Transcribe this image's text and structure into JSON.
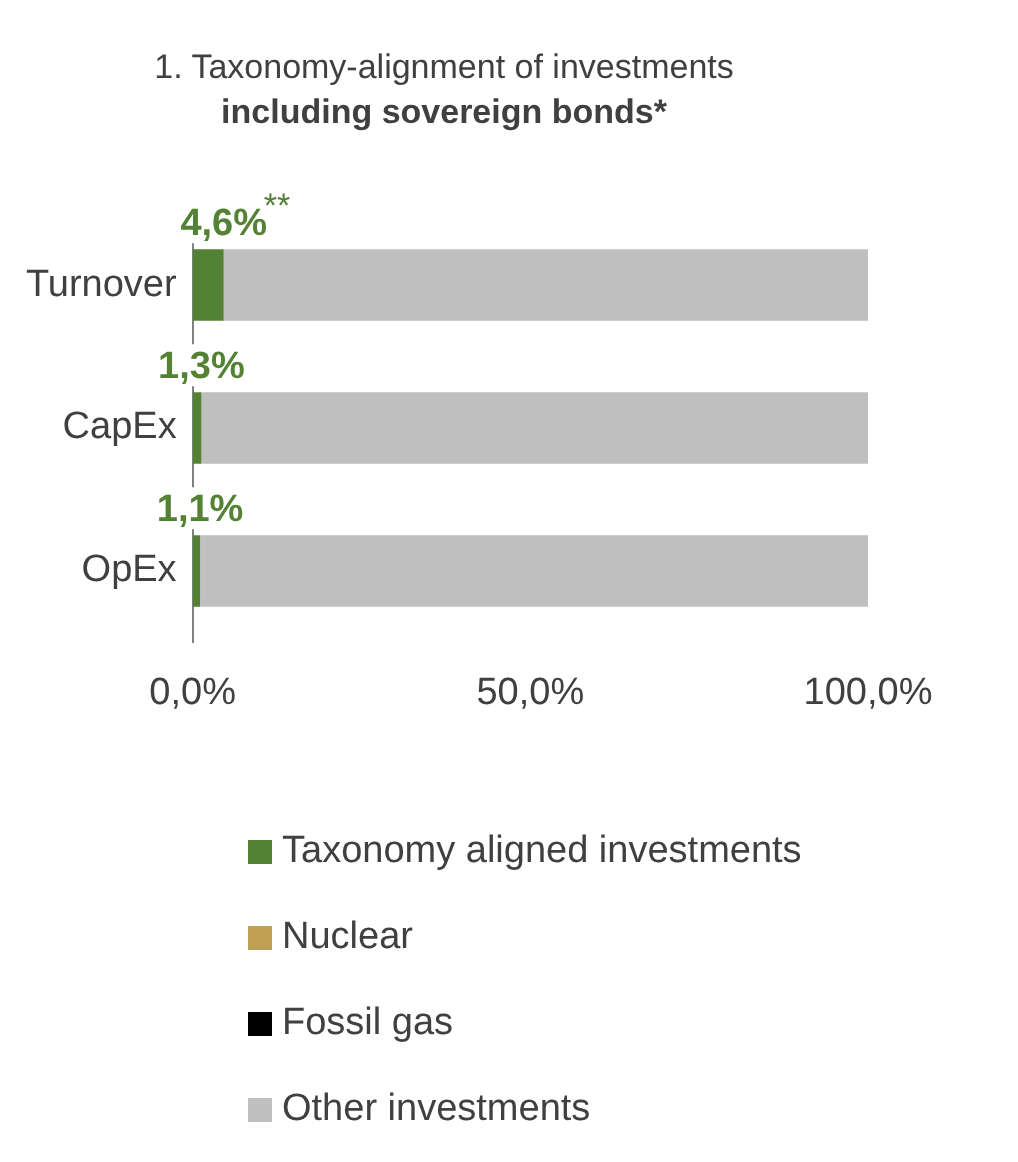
{
  "chart_data": {
    "type": "bar",
    "orientation": "horizontal",
    "stacked": true,
    "title": "1. Taxonomy-alignment of investments",
    "subtitle": "including sovereign bonds*",
    "categories": [
      "Turnover",
      "CapEx",
      "OpEx"
    ],
    "series": [
      {
        "name": "Taxonomy aligned investments",
        "color": "#548235",
        "values": [
          4.6,
          1.3,
          1.1
        ],
        "value_labels": [
          "4,6%",
          "1,3%",
          "1,1%"
        ]
      },
      {
        "name": "Nuclear",
        "color": "#bf9f54",
        "values": [
          0,
          0,
          0
        ]
      },
      {
        "name": "Fossil gas",
        "color": "#000000",
        "values": [
          0,
          0,
          0
        ]
      },
      {
        "name": "Other investments",
        "color": "#bfbfbf",
        "values": [
          95.4,
          98.7,
          98.9
        ]
      }
    ],
    "xlim": [
      0,
      100
    ],
    "xticks": [
      {
        "value": 0,
        "label": "0,0%"
      },
      {
        "value": 50,
        "label": "50,0%"
      },
      {
        "value": 100,
        "label": "100,0%"
      }
    ],
    "annotations": [
      {
        "text": "**",
        "x": 4.6,
        "y": "Turnover"
      }
    ],
    "grid": false,
    "legend": "bottom"
  }
}
